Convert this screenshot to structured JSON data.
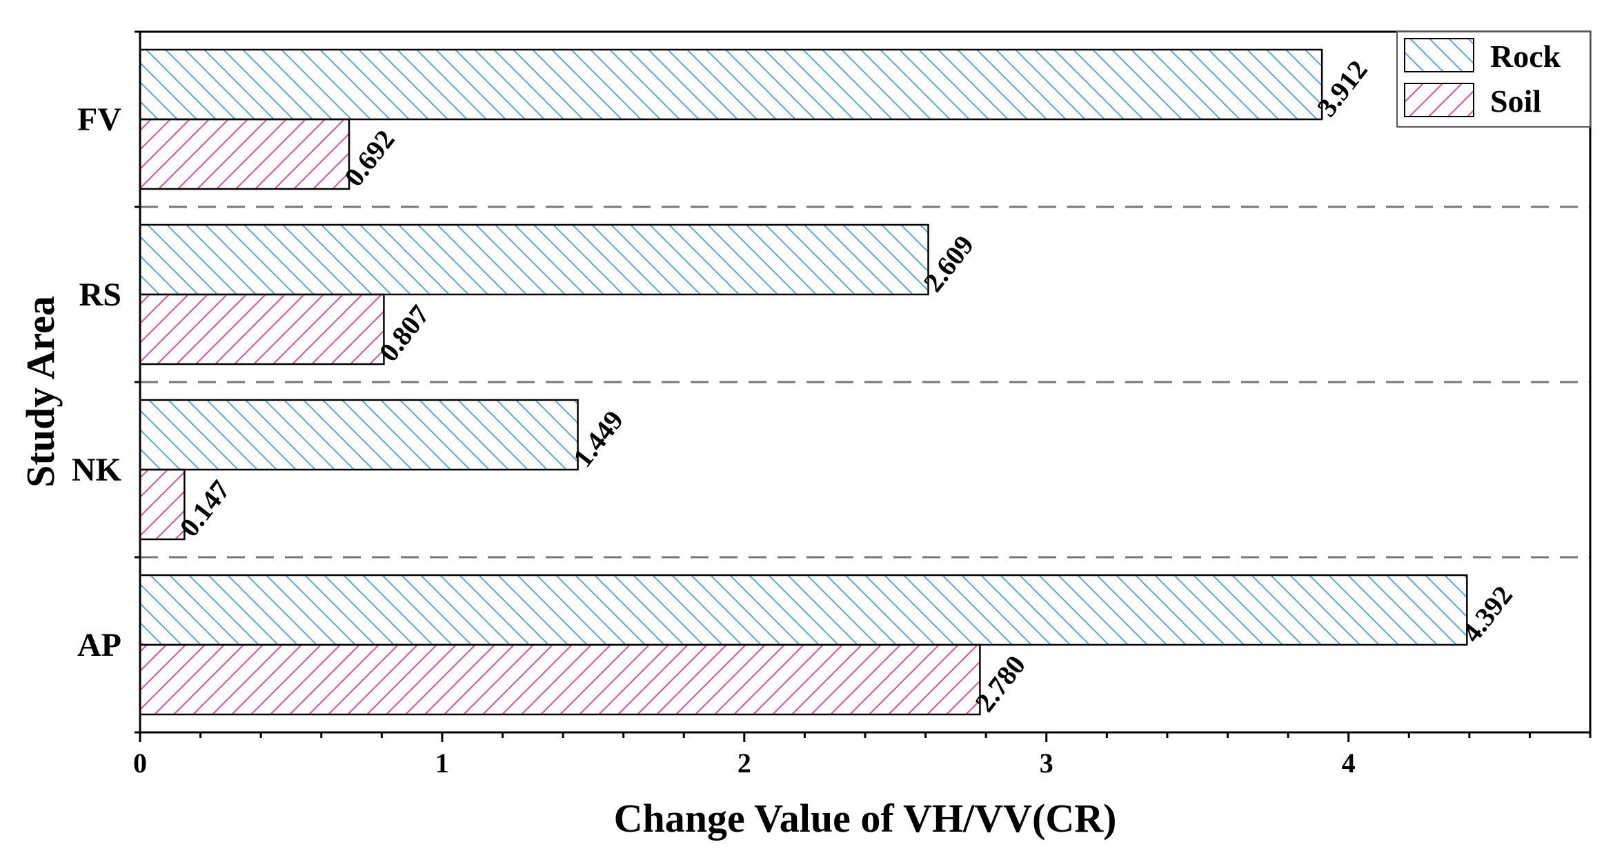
{
  "chart_data": {
    "type": "bar",
    "orientation": "horizontal",
    "title": "",
    "xlabel": "Change Value of VH/VV(CR)",
    "ylabel": "Study Area",
    "categories": [
      "FV",
      "RS",
      "NK",
      "AP"
    ],
    "series": [
      {
        "name": "Rock",
        "values": [
          3.912,
          2.609,
          1.449,
          4.392
        ],
        "labels": [
          "3.912",
          "2.609",
          "1.449",
          "4.392"
        ],
        "color": "#5aa7d6",
        "hatch": "backslash"
      },
      {
        "name": "Soil",
        "values": [
          0.692,
          0.807,
          0.147,
          2.78
        ],
        "labels": [
          "0.692",
          "0.807",
          "0.147",
          "2.780"
        ],
        "color": "#d94f9a",
        "hatch": "slash"
      }
    ],
    "xlim": [
      0,
      4.8
    ],
    "xticks": [
      "0",
      "1",
      "2",
      "3",
      "4"
    ],
    "separators": "dashed",
    "legend_position": "top-right"
  }
}
